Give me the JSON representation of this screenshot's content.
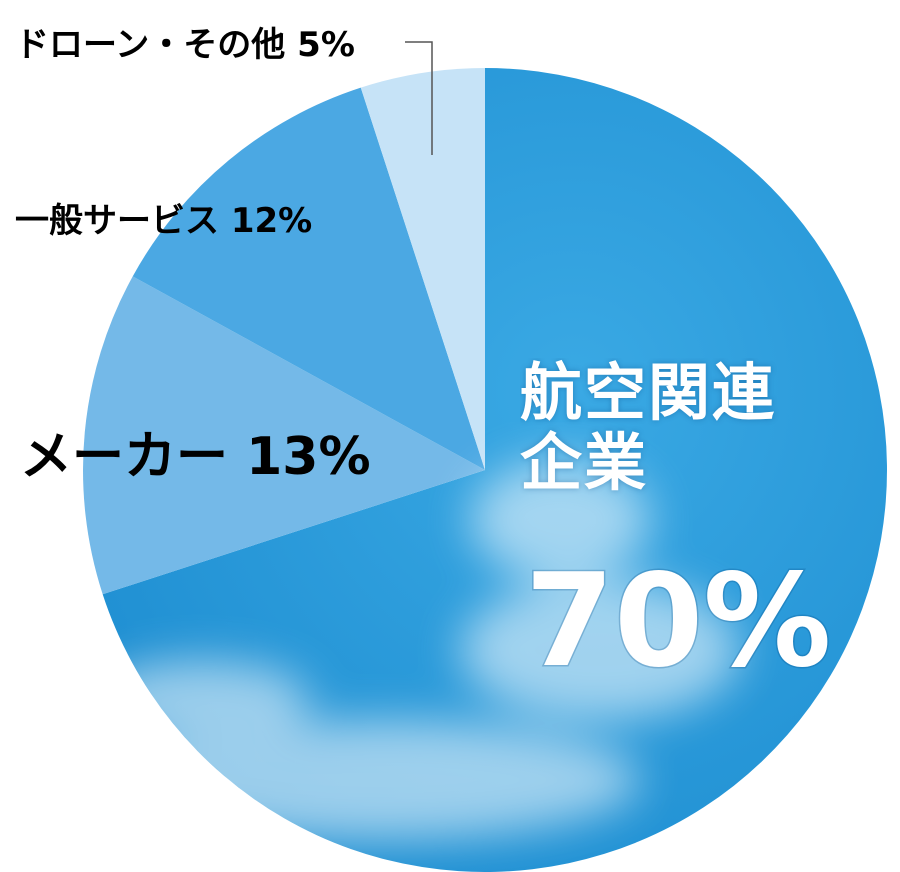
{
  "chart_data": {
    "type": "pie",
    "categories": [
      "航空関連企業",
      "メーカー",
      "一般サービス",
      "ドローン・その他"
    ],
    "values": [
      70,
      13,
      12,
      5
    ],
    "value_labels": [
      "70%",
      "13%",
      "12%",
      "5%"
    ],
    "colors": [
      "#2a9ddc",
      "#74b9e8",
      "#4ba8e3",
      "#c6e3f7"
    ]
  }
}
